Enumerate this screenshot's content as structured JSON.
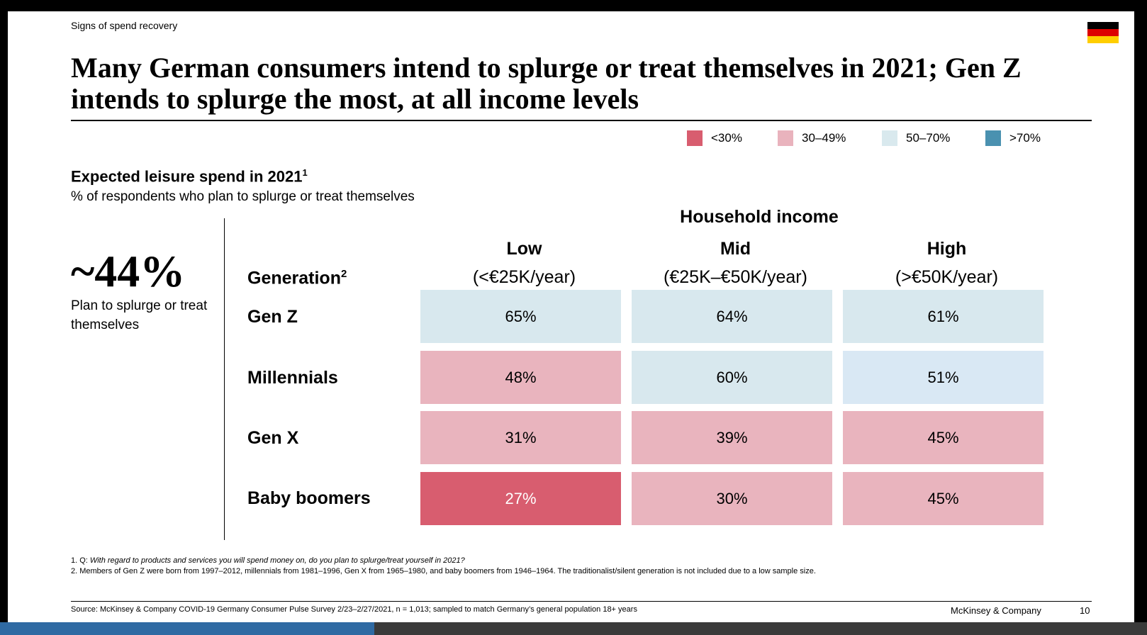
{
  "section_tag": "Signs of spend recovery",
  "title": "Many German consumers intend to splurge or treat themselves in 2021; Gen Z intends to splurge the most, at all income levels",
  "legend": [
    {
      "label": "<30%",
      "color": "#d85d6f"
    },
    {
      "label": "30–49%",
      "color": "#e9b3bd"
    },
    {
      "label": "50–70%",
      "color": "#d9e9ee"
    },
    {
      "label": ">70%",
      "color": "#4a91b0"
    }
  ],
  "subtitle": "Expected leisure spend in 2021",
  "subtitle_sup": "1",
  "subnote": "% of respondents who plan to splurge or treat themselves",
  "stat": {
    "value": "~44%",
    "caption": "Plan to splurge or treat themselves"
  },
  "chart_data": {
    "type": "table",
    "title": "Expected leisure spend in 2021",
    "column_group": "Household income",
    "row_header": "Generation",
    "row_header_sup": "2",
    "columns": [
      {
        "name": "Low",
        "range": "(<€25K/year)"
      },
      {
        "name": "Mid",
        "range": "(€25K–€50K/year)"
      },
      {
        "name": "High",
        "range": "(>€50K/year)"
      }
    ],
    "rows": [
      {
        "label": "Gen Z",
        "values": [
          65,
          64,
          61
        ],
        "display": [
          "65%",
          "64%",
          "61%"
        ],
        "colors": [
          "#d8e8ee",
          "#d8e8ee",
          "#d8e8ee"
        ]
      },
      {
        "label": "Millennials",
        "values": [
          48,
          60,
          51
        ],
        "display": [
          "48%",
          "60%",
          "51%"
        ],
        "colors": [
          "#e9b4be",
          "#d8e8ee",
          "#d9e8f4"
        ]
      },
      {
        "label": "Gen X",
        "values": [
          31,
          39,
          45
        ],
        "display": [
          "31%",
          "39%",
          "45%"
        ],
        "colors": [
          "#e9b4be",
          "#e9b4be",
          "#e9b4be"
        ]
      },
      {
        "label": "Baby boomers",
        "values": [
          27,
          30,
          45
        ],
        "display": [
          "27%",
          "30%",
          "45%"
        ],
        "colors": [
          "#d85d6f",
          "#e9b4be",
          "#e9b4be"
        ]
      }
    ]
  },
  "footnotes": {
    "fn1_prefix": "1. Q: ",
    "fn1_text": "With regard to products and services you will spend money on, do you plan to splurge/treat yourself in 2021?",
    "fn2": "2. Members of Gen Z were born from 1997–2012, millennials from 1981–1996, Gen X from 1965–1980, and baby boomers from 1946–1964. The traditionalist/silent generation is not included due to a low sample size.",
    "source": "Source: McKinsey & Company COVID-19 Germany Consumer Pulse Survey 2/23–2/27/2021, n = 1,013; sampled to match Germany’s general population 18+ years"
  },
  "brand": "McKinsey & Company",
  "page_number": "10",
  "flag_colors": [
    "#000000",
    "#dd0000",
    "#ffce00"
  ]
}
